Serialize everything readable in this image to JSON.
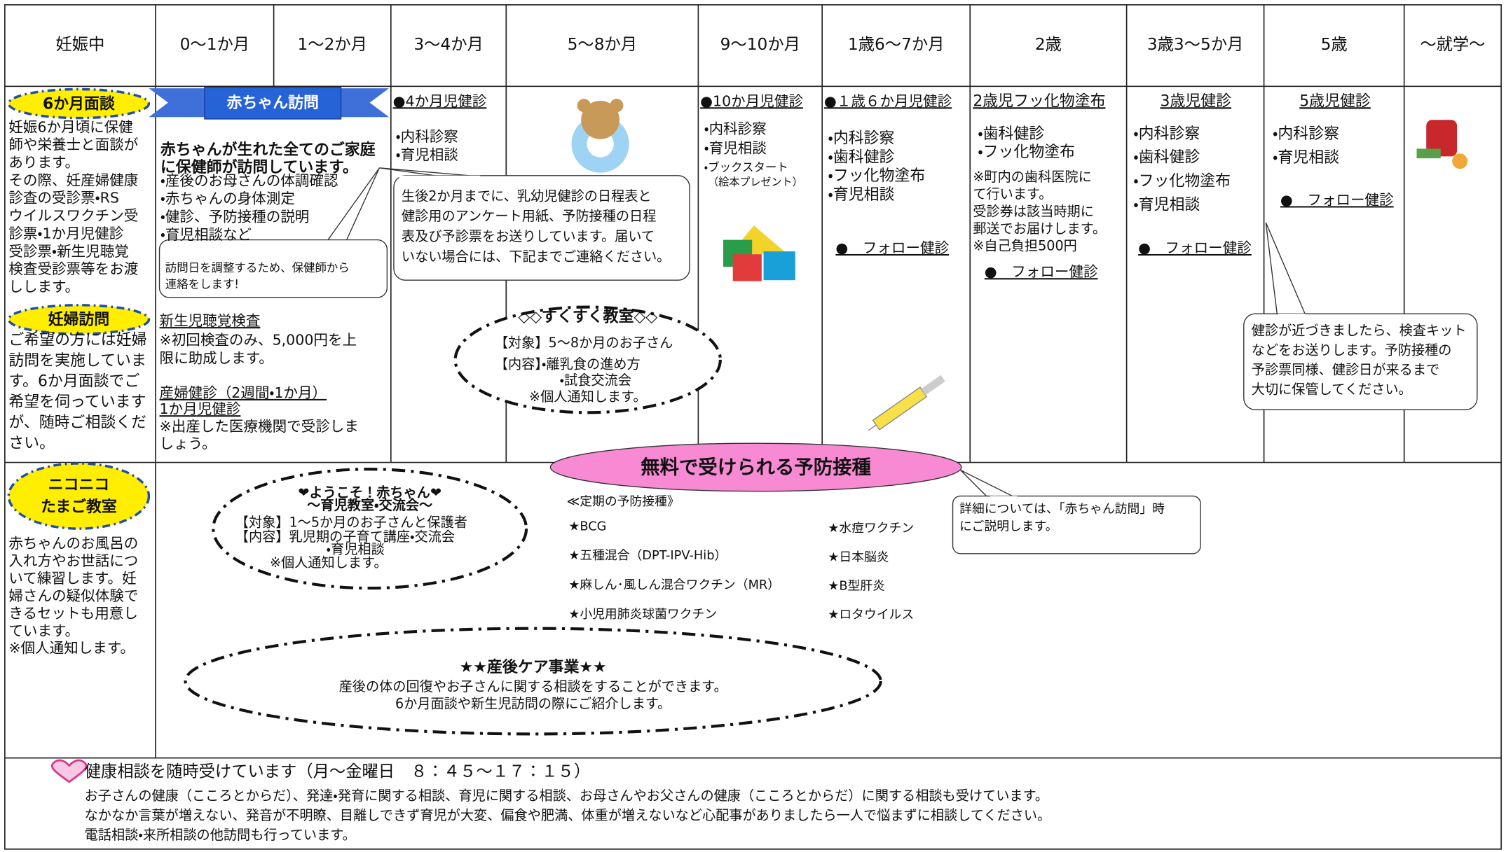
{
  "header": {
    "columns": [
      "妊娠中",
      "0～1か月",
      "1～2か月",
      "3～4か月",
      "5～8か月",
      "9～10か月",
      "1歳6～7か月",
      "2歳",
      "3歳3～5か月",
      "5歳",
      "～就学～"
    ]
  },
  "pregnancy": {
    "interview_badge": "6か月面談",
    "interview_text": [
      "妊娠6か月頃に保健",
      "師や栄養士と面談が",
      "あります。",
      "その際、妊産婦健康",
      "診査の受診票・RS",
      "ウイルスワクチン受",
      "診票・1か月児健診",
      "受診票・新生児聴覚",
      "検査受診票等をお渡",
      "しします。"
    ],
    "visit_badge": "妊婦訪問",
    "visit_text": [
      "ご希望の方には妊婦",
      "訪問を実施していま",
      "す。6か月面談でご",
      "希望を伺っています",
      "が、随時ご相談くだ",
      "さい。"
    ],
    "class_badge": [
      "ニコニコ",
      "たまご教室"
    ],
    "class_text": [
      "赤ちゃんのお風呂の",
      "入れ方やお世話につ",
      "いて練習します。妊",
      "婦さんの疑似体験で",
      "きるセットも用意し",
      "ています。",
      "※個人通知します。"
    ]
  },
  "baby_visit": {
    "banner": "赤ちゃん訪問",
    "heading": [
      "赤ちゃんが生れた全てのご家庭",
      "に保健師が訪問しています。"
    ],
    "items": [
      "・産後のお母さんの体調確認",
      "・赤ちゃんの身体測定",
      "・健診、予防接種の説明",
      "・育児相談など"
    ],
    "note": [
      "訪問日を調整するため、保健師から",
      "連絡をします!"
    ]
  },
  "newborn": {
    "hearing_title": "新生児聴覚検査",
    "hearing_text": [
      "※初回検査のみ、5,000円を上",
      "限に助成します。"
    ],
    "checkup_title": [
      "産婦健診（2週間・1か月）",
      "1か月児健診"
    ],
    "checkup_text": [
      "※出産した医療機関で受診しま",
      "しょう。"
    ]
  },
  "checkup_4m": {
    "title": "●4か月児健診",
    "items": [
      "・内科診察",
      "・育児相談"
    ]
  },
  "mail_note": [
    "生後2か月までに、乳幼児健診の日程表と",
    "健診用のアンケート用紙、予防接種の日程",
    "表及び予診票をお送りしています。届いて",
    "いない場合には、下記までご連絡ください。"
  ],
  "sukusuku": {
    "title": "◇◇すくすく教室◇◇",
    "target": "【対象】5～8か月のお子さん",
    "content": "【内容】・離乳食の進め方",
    "content2": "・試食交流会",
    "notice": "※個人通知します。"
  },
  "checkup_10m": {
    "title": "●10か月児健診",
    "items": [
      "・内科診察",
      "・育児相談"
    ],
    "bookstart": "・ブックスタート",
    "note": "（絵本プレゼント）"
  },
  "checkup_18m": {
    "title": "●１歳６か月児健診",
    "items": [
      "・内科診察",
      "・歯科健診",
      "・フッ化物塗布",
      "・育児相談"
    ],
    "follow": "●　フォロー健診"
  },
  "fluoride_2y": {
    "title": "2歳児フッ化物塗布",
    "items": [
      "・歯科健診",
      "・フッ化物塗布"
    ],
    "note": [
      "※町内の歯科医院に",
      "て行います。",
      "受診券は該当時期に",
      "郵送でお届けします。",
      "※自己負担500円"
    ],
    "follow": "●　フォロー健診"
  },
  "checkup_3y": {
    "title": "3歳児健診",
    "items": [
      "・内科診察",
      "・歯科健診",
      "・フッ化物塗布",
      "・育児相談"
    ],
    "follow": "●　フォロー健診"
  },
  "checkup_5y": {
    "title": "5歳児健診",
    "items": [
      "・内科診察",
      "・育児相談"
    ],
    "follow": "●　フォロー健診"
  },
  "kit_note": [
    "健診が近づきましたら、検査キット",
    "などをお送りします。予防接種の",
    "予診票同様、健診日が来るまで",
    "大切に保管してください。"
  ],
  "youkoso": {
    "title": [
      "❤ようこそ！赤ちゃん❤",
      "～育児教室・交流会～"
    ],
    "lines": [
      "【対象】1～5か月のお子さんと保護者",
      "【内容】乳児期の子育て講座・交流会"
    ],
    "sub": "・育児相談",
    "notice": "※個人通知します。"
  },
  "vaccines": {
    "banner": "無料で受けられる予防接種",
    "heading": "≪定期の予防接種》",
    "left": [
      "★BCG",
      "★五種混合（DPT-IPV-Hib）",
      "★麻しん･風しん混合ワクチン（MR）",
      "★小児用肺炎球菌ワクチン"
    ],
    "right": [
      "★水痘ワクチン",
      "★日本脳炎",
      "★B型肝炎",
      "★ロタウイルス"
    ],
    "note": [
      "詳細については、「赤ちゃん訪問」時",
      "にご説明します。"
    ]
  },
  "postnatal": {
    "title": "★★産後ケア事業★★",
    "lines": [
      "産後の体の回復やお子さんに関する相談をすることができます。",
      "6か月面談や新生児訪問の際にご紹介します。"
    ]
  },
  "footer": {
    "title": "健康相談を随時受けています（月～金曜日　８：４５～１７：１５）",
    "lines": [
      "お子さんの健康（こころとからだ）、発達・発育に関する相談、育児に関する相談、お母さんやお父さんの健康（こころとからだ）に関する相談も受けています。",
      "なかなか言葉が増えない、発音が不明瞭、目離しできず育児が大変、偏食や肥満、体重が増えないなど心配事がありましたら一人で悩まずに相談してください。",
      "電話相談・来所相談の他訪問も行っています。"
    ]
  }
}
